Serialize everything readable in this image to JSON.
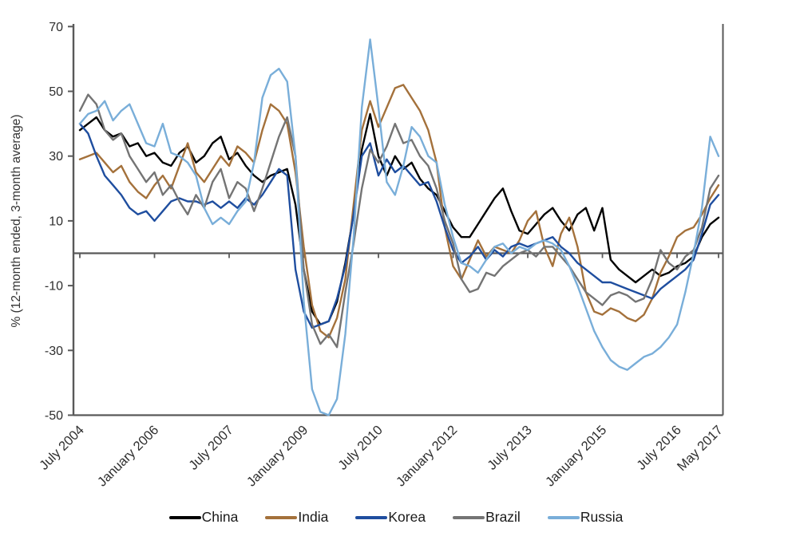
{
  "y_axis_title": "% (12-month ended, 3-month average)",
  "chart_data": {
    "type": "line",
    "title": "",
    "xlabel": "",
    "ylabel": "% (12-month ended, 3-month average)",
    "ylim": [
      -50,
      70
    ],
    "y_ticks": [
      70,
      50,
      30,
      10,
      -10,
      -30,
      -50
    ],
    "grid": "zero-line only",
    "legend_position": "bottom-center",
    "axis_color": "#595959",
    "tick_label_color": "#2e2e2e",
    "x_unit": "months since July 2004",
    "x_tick_months": [
      0,
      18,
      36,
      54,
      72,
      90,
      108,
      126,
      144,
      154
    ],
    "x_tick_labels": [
      "July 2004",
      "January 2006",
      "July 2007",
      "January 2009",
      "July 2010",
      "January 2012",
      "July 2013",
      "January 2015",
      "July 2016",
      "May 2017"
    ],
    "x_months": [
      0,
      2,
      4,
      6,
      8,
      10,
      12,
      14,
      16,
      18,
      20,
      22,
      24,
      26,
      28,
      30,
      32,
      34,
      36,
      38,
      40,
      42,
      44,
      46,
      48,
      50,
      52,
      54,
      56,
      58,
      60,
      62,
      64,
      66,
      68,
      70,
      72,
      74,
      76,
      78,
      80,
      82,
      84,
      86,
      88,
      90,
      92,
      94,
      96,
      98,
      100,
      102,
      104,
      106,
      108,
      110,
      112,
      114,
      116,
      118,
      120,
      122,
      124,
      126,
      128,
      130,
      132,
      134,
      136,
      138,
      140,
      142,
      144,
      146,
      148,
      150,
      152,
      154
    ],
    "series": [
      {
        "name": "China",
        "color": "#000000",
        "values": [
          38,
          40,
          42,
          38,
          36,
          37,
          33,
          34,
          30,
          31,
          28,
          27,
          31,
          33,
          28,
          30,
          34,
          36,
          29,
          31,
          27,
          24,
          22,
          24,
          25,
          26,
          15,
          -5,
          -18,
          -22,
          -21,
          -15,
          -3,
          12,
          32,
          43,
          30,
          24,
          30,
          26,
          28,
          23,
          20,
          18,
          13,
          8,
          5,
          5,
          9,
          13,
          17,
          20,
          13,
          7,
          6,
          9,
          12,
          14,
          10,
          7,
          12,
          14,
          7,
          14,
          -2,
          -5,
          -7,
          -9,
          -7,
          -5,
          -7,
          -6,
          -4,
          -3,
          -1,
          5,
          9,
          11
        ]
      },
      {
        "name": "India",
        "color": "#A4713B",
        "values": [
          29,
          30,
          31,
          28,
          25,
          27,
          22,
          19,
          17,
          21,
          24,
          20,
          27,
          34,
          25,
          22,
          26,
          30,
          27,
          33,
          31,
          28,
          38,
          46,
          44,
          40,
          25,
          2,
          -16,
          -24,
          -26,
          -20,
          -8,
          15,
          38,
          47,
          39,
          45,
          51,
          52,
          48,
          44,
          38,
          28,
          8,
          -4,
          -8,
          -2,
          4,
          -1,
          2,
          1,
          0,
          4,
          10,
          13,
          2,
          -4,
          6,
          11,
          2,
          -12,
          -18,
          -19,
          -17,
          -18,
          -20,
          -21,
          -19,
          -14,
          -6,
          -1,
          5,
          7,
          8,
          12,
          17,
          21
        ]
      },
      {
        "name": "Korea",
        "color": "#1F4E9F",
        "values": [
          40,
          37,
          30,
          24,
          21,
          18,
          14,
          12,
          13,
          10,
          13,
          16,
          17,
          16,
          16,
          15,
          16,
          14,
          16,
          14,
          17,
          15,
          18,
          22,
          26,
          24,
          -5,
          -18,
          -23,
          -22,
          -21,
          -14,
          -4,
          12,
          30,
          34,
          24,
          29,
          25,
          27,
          24,
          21,
          22,
          16,
          8,
          1,
          -3,
          -1,
          2,
          -2,
          1,
          -1,
          2,
          3,
          2,
          3,
          4,
          5,
          2,
          0,
          -3,
          -5,
          -7,
          -9,
          -9,
          -10,
          -11,
          -12,
          -13,
          -14,
          -11,
          -9,
          -7,
          -5,
          -2,
          6,
          15,
          18
        ]
      },
      {
        "name": "Brazil",
        "color": "#747474",
        "values": [
          44,
          49,
          46,
          38,
          35,
          37,
          30,
          26,
          22,
          25,
          18,
          21,
          16,
          12,
          18,
          14,
          22,
          26,
          17,
          22,
          20,
          13,
          20,
          28,
          36,
          42,
          30,
          -5,
          -22,
          -28,
          -25,
          -29,
          -12,
          3,
          20,
          32,
          28,
          33,
          40,
          34,
          35,
          30,
          27,
          20,
          10,
          3,
          -8,
          -12,
          -11,
          -6,
          -7,
          -4,
          -2,
          0,
          1,
          -1,
          2,
          2,
          -1,
          -4,
          -8,
          -12,
          -14,
          -16,
          -13,
          -12,
          -13,
          -15,
          -14,
          -8,
          1,
          -3,
          -5,
          -1,
          1,
          8,
          20,
          24
        ]
      },
      {
        "name": "Russia",
        "color": "#79AED9",
        "values": [
          40,
          43,
          44,
          47,
          41,
          44,
          46,
          40,
          34,
          33,
          40,
          31,
          30,
          28,
          24,
          14,
          9,
          11,
          9,
          13,
          16,
          28,
          48,
          55,
          57,
          53,
          30,
          -15,
          -42,
          -49,
          -50,
          -45,
          -25,
          5,
          45,
          66,
          45,
          22,
          18,
          27,
          39,
          36,
          30,
          28,
          15,
          5,
          -3,
          -4,
          -6,
          -2,
          2,
          3,
          0,
          2,
          1,
          3,
          4,
          3,
          1,
          -4,
          -10,
          -17,
          -24,
          -29,
          -33,
          -35,
          -36,
          -34,
          -32,
          -31,
          -29,
          -26,
          -22,
          -12,
          0,
          14,
          36,
          30
        ]
      }
    ]
  }
}
